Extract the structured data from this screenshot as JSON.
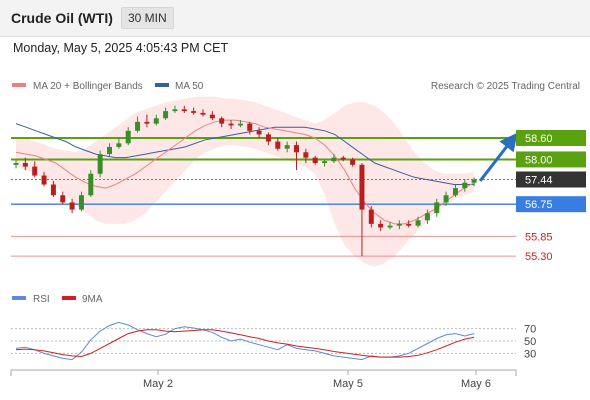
{
  "header": {
    "title": "Crude Oil (WTI)",
    "timeframe": "30 MIN"
  },
  "datetime": "Monday, May 5, 2025 4:05:43 PM CET",
  "legend": {
    "ma20": {
      "label": "MA 20 + Bollinger Bands",
      "color": "#f08080"
    },
    "ma50": {
      "label": "MA 50",
      "color": "#3a5f9f"
    }
  },
  "watermark": "Research © 2025 Trading Central",
  "rsi_legend": {
    "rsi": {
      "label": "RSI",
      "color": "#5b8ad8"
    },
    "ma": {
      "label": "9MA",
      "color": "#d42020"
    }
  },
  "colors": {
    "up": "#3a8e2a",
    "down": "#b82020",
    "resistance": "#5aa110",
    "support_main": "#3a7de0",
    "support": "#f08e8e",
    "last": "#333333",
    "arrow": "#2a6fbb"
  },
  "chart_data": [
    {
      "type": "candlestick",
      "ylim": [
        54.8,
        59.8
      ],
      "x_ticks": [
        "May 2",
        "May 5",
        "May 6"
      ],
      "levels": [
        {
          "value": 58.6,
          "label": "58.60",
          "kind": "resistance"
        },
        {
          "value": 58.0,
          "label": "58.00",
          "kind": "resistance"
        },
        {
          "value": 57.44,
          "label": "57.44",
          "kind": "last"
        },
        {
          "value": 56.75,
          "label": "56.75",
          "kind": "support_main"
        },
        {
          "value": 55.85,
          "label": "55.85",
          "kind": "support"
        },
        {
          "value": 55.3,
          "label": "55.30",
          "kind": "support"
        }
      ],
      "projection": {
        "from": 57.4,
        "to": 58.55
      },
      "series": [
        {
          "legend": "ma20",
          "values": [
            58.2,
            58.15,
            58.1,
            58.0,
            57.9,
            57.7,
            57.5,
            57.35,
            57.25,
            57.2,
            57.3,
            57.45,
            57.6,
            57.8,
            58.0,
            58.2,
            58.4,
            58.6,
            58.8,
            58.95,
            59.05,
            59.1,
            59.1,
            59.05,
            59.0,
            58.9,
            58.85,
            58.8,
            58.75,
            58.7,
            58.6,
            58.4,
            58.1,
            57.7,
            57.2,
            56.8,
            56.5,
            56.3,
            56.2,
            56.2,
            56.3,
            56.45,
            56.6,
            56.8,
            57.0,
            57.2,
            57.35
          ]
        },
        {
          "legend": "ma50",
          "values": [
            59.0,
            58.9,
            58.8,
            58.7,
            58.6,
            58.5,
            58.35,
            58.25,
            58.15,
            58.1,
            58.05,
            58.05,
            58.1,
            58.15,
            58.2,
            58.25,
            58.3,
            58.35,
            58.45,
            58.55,
            58.6,
            58.65,
            58.7,
            58.75,
            58.8,
            58.85,
            58.9,
            58.9,
            58.9,
            58.9,
            58.85,
            58.8,
            58.7,
            58.5,
            58.3,
            58.1,
            57.9,
            57.8,
            57.7,
            57.6,
            57.5,
            57.45,
            57.4,
            57.35,
            57.3,
            57.3,
            57.3
          ]
        },
        {
          "legend": "bb_upper",
          "values": [
            58.6,
            58.6,
            58.5,
            58.4,
            58.3,
            58.25,
            58.2,
            58.3,
            58.5,
            58.7,
            58.9,
            59.1,
            59.3,
            59.4,
            59.5,
            59.6,
            59.65,
            59.7,
            59.75,
            59.75,
            59.75,
            59.7,
            59.7,
            59.65,
            59.6,
            59.5,
            59.4,
            59.3,
            59.2,
            59.1,
            59.0,
            59.1,
            59.3,
            59.5,
            59.6,
            59.6,
            59.5,
            59.3,
            59.0,
            58.6,
            58.2,
            57.9,
            57.7,
            57.6,
            57.6,
            57.6,
            57.65
          ]
        },
        {
          "legend": "bb_lower",
          "values": [
            57.8,
            57.7,
            57.6,
            57.45,
            57.25,
            57.0,
            56.75,
            56.5,
            56.3,
            56.2,
            56.2,
            56.2,
            56.3,
            56.5,
            56.8,
            57.1,
            57.4,
            57.7,
            58.0,
            58.2,
            58.3,
            58.4,
            58.4,
            58.35,
            58.3,
            58.2,
            58.1,
            58.0,
            57.9,
            57.8,
            57.6,
            57.0,
            56.2,
            55.6,
            55.3,
            55.1,
            55.0,
            55.1,
            55.3,
            55.6,
            55.9,
            56.2,
            56.5,
            56.7,
            56.9,
            57.0,
            57.1
          ]
        },
        {
          "legend": "price",
          "open": [
            57.85,
            57.9,
            57.8,
            57.55,
            57.3,
            57.0,
            56.8,
            56.6,
            57.0,
            57.6,
            58.15,
            58.35,
            58.45,
            58.8,
            59.05,
            59.0,
            59.15,
            59.35,
            59.4,
            59.35,
            59.3,
            59.25,
            59.15,
            59.0,
            58.95,
            59.0,
            58.8,
            58.7,
            58.5,
            58.3,
            58.4,
            58.2,
            58.05,
            57.9,
            57.95,
            58.05,
            58.0,
            57.85,
            56.6,
            56.2,
            56.1,
            56.15,
            56.2,
            56.15,
            56.3,
            56.5,
            56.8,
            57.0,
            57.2,
            57.35
          ],
          "high": [
            58.0,
            58.05,
            57.95,
            57.65,
            57.4,
            57.1,
            56.9,
            57.1,
            57.7,
            58.25,
            58.45,
            58.6,
            58.9,
            59.2,
            59.25,
            59.25,
            59.45,
            59.5,
            59.5,
            59.45,
            59.4,
            59.35,
            59.2,
            59.1,
            59.1,
            59.05,
            58.9,
            58.75,
            58.6,
            58.5,
            58.5,
            58.3,
            58.1,
            58.0,
            58.15,
            58.1,
            58.05,
            57.9,
            56.7,
            56.3,
            56.25,
            56.3,
            56.3,
            56.4,
            56.6,
            56.9,
            57.1,
            57.3,
            57.45,
            57.5
          ],
          "low": [
            57.75,
            57.7,
            57.5,
            57.25,
            56.95,
            56.75,
            56.5,
            56.55,
            56.95,
            57.5,
            58.1,
            58.3,
            58.4,
            58.75,
            58.9,
            58.95,
            59.1,
            59.3,
            59.3,
            59.25,
            59.2,
            59.1,
            58.9,
            58.85,
            58.9,
            58.7,
            58.6,
            58.4,
            58.25,
            58.2,
            57.7,
            57.9,
            57.85,
            57.8,
            57.9,
            57.95,
            57.8,
            55.3,
            56.1,
            56.0,
            56.05,
            56.05,
            56.1,
            56.1,
            56.2,
            56.4,
            56.7,
            56.95,
            57.1,
            57.25
          ],
          "close": [
            57.9,
            57.8,
            57.55,
            57.3,
            57.0,
            56.8,
            56.6,
            57.0,
            57.6,
            58.15,
            58.35,
            58.45,
            58.8,
            59.05,
            59.0,
            59.15,
            59.35,
            59.4,
            59.35,
            59.3,
            59.25,
            59.15,
            59.0,
            58.95,
            59.0,
            58.8,
            58.7,
            58.5,
            58.3,
            58.4,
            58.2,
            58.05,
            57.9,
            57.95,
            58.05,
            58.0,
            57.85,
            56.6,
            56.2,
            56.1,
            56.15,
            56.2,
            56.15,
            56.3,
            56.5,
            56.8,
            57.0,
            57.2,
            57.35,
            57.44
          ]
        }
      ]
    },
    {
      "type": "line",
      "ylim": [
        0,
        100
      ],
      "y_ticks": [
        70,
        50,
        30
      ],
      "series": [
        {
          "legend": "rsi",
          "values": [
            38,
            40,
            36,
            30,
            26,
            22,
            20,
            32,
            52,
            66,
            75,
            80,
            76,
            68,
            62,
            57,
            61,
            70,
            73,
            71,
            68,
            64,
            56,
            50,
            53,
            48,
            44,
            40,
            36,
            44,
            38,
            36,
            34,
            30,
            26,
            24,
            22,
            20,
            26,
            24,
            24,
            26,
            30,
            38,
            46,
            54,
            60,
            62,
            58,
            62
          ]
        },
        {
          "legend": "ma",
          "values": [
            36,
            37,
            36,
            34,
            31,
            28,
            26,
            25,
            30,
            38,
            46,
            54,
            62,
            66,
            68,
            68,
            66,
            65,
            66,
            67,
            68,
            68,
            66,
            63,
            60,
            57,
            54,
            50,
            47,
            45,
            42,
            40,
            38,
            36,
            33,
            31,
            29,
            27,
            25,
            24,
            24,
            24,
            25,
            27,
            31,
            36,
            42,
            48,
            53,
            56
          ]
        }
      ]
    }
  ]
}
